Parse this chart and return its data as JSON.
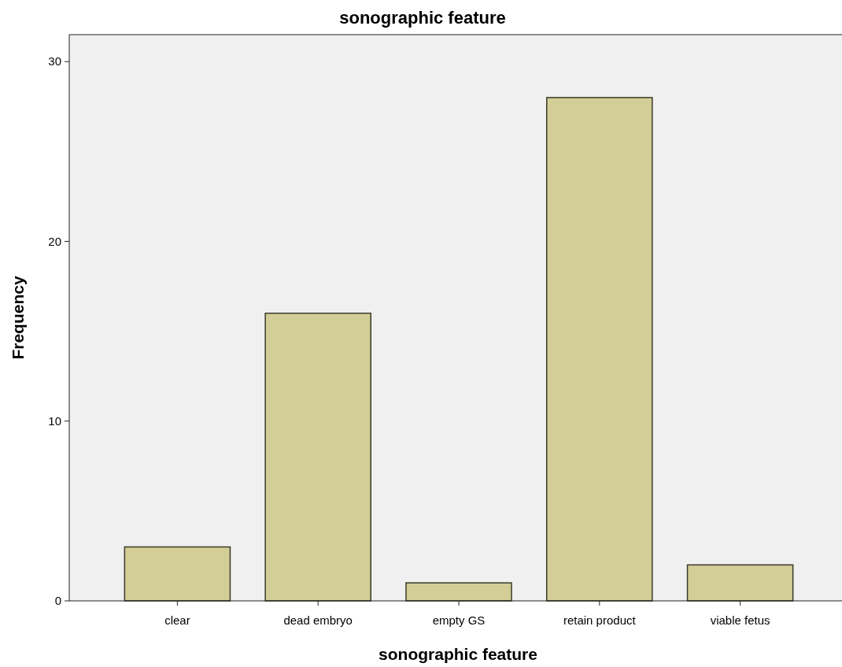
{
  "chart_data": {
    "type": "bar",
    "title": "sonographic feature",
    "xlabel": "sonographic feature",
    "ylabel": "Frequency",
    "categories": [
      "clear",
      "dead embryo",
      "empty GS",
      "retain product",
      "viable fetus"
    ],
    "values": [
      3,
      16,
      1,
      28,
      2
    ],
    "color": "#d3ce97",
    "ylim": [
      0,
      31.5
    ],
    "yticks": [
      0,
      10,
      20,
      30
    ],
    "grid": false
  }
}
